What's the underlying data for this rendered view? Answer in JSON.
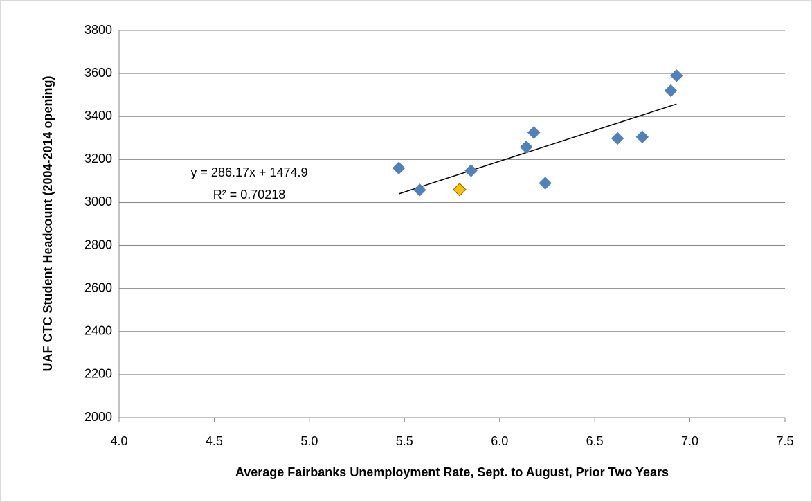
{
  "chart_data": {
    "type": "scatter",
    "xlabel": "Average Fairbanks Unemployment Rate, Sept. to August, Prior Two Years",
    "ylabel": "UAF CTC Student Headcount (2004-2014 opening)",
    "annotations": [
      "y = 286.17x + 1474.9",
      "R² = 0.70218"
    ],
    "xlim": [
      4,
      7.5
    ],
    "xticks": [
      {
        "value": 4,
        "label": "4.0"
      },
      4.5,
      {
        "value": 5,
        "label": "5.0"
      },
      5.5,
      {
        "value": 6,
        "label": "6.0"
      },
      6.5,
      {
        "value": 7,
        "label": "7.0"
      },
      7.5
    ],
    "ylim": [
      2000,
      3800
    ],
    "yticks": [
      2000,
      2200,
      2400,
      2600,
      2800,
      3000,
      3200,
      3400,
      3600,
      3800
    ],
    "grid": true,
    "series": [
      {
        "color": "#4f81bd",
        "x": [
          5.47,
          5.58,
          5.85,
          6.14,
          6.18,
          6.24,
          6.62,
          6.75,
          6.9,
          6.93
        ],
        "values": [
          3160,
          3058,
          3148,
          3258,
          3325,
          3090,
          3298,
          3305,
          3520,
          3590
        ]
      },
      {
        "color": "#ffc000",
        "x": [
          5.79
        ],
        "values": [
          3060
        ]
      }
    ],
    "trendline": {
      "color": "#000000",
      "x": [
        5.47,
        6.93
      ],
      "values": [
        3040,
        3458
      ]
    }
  }
}
